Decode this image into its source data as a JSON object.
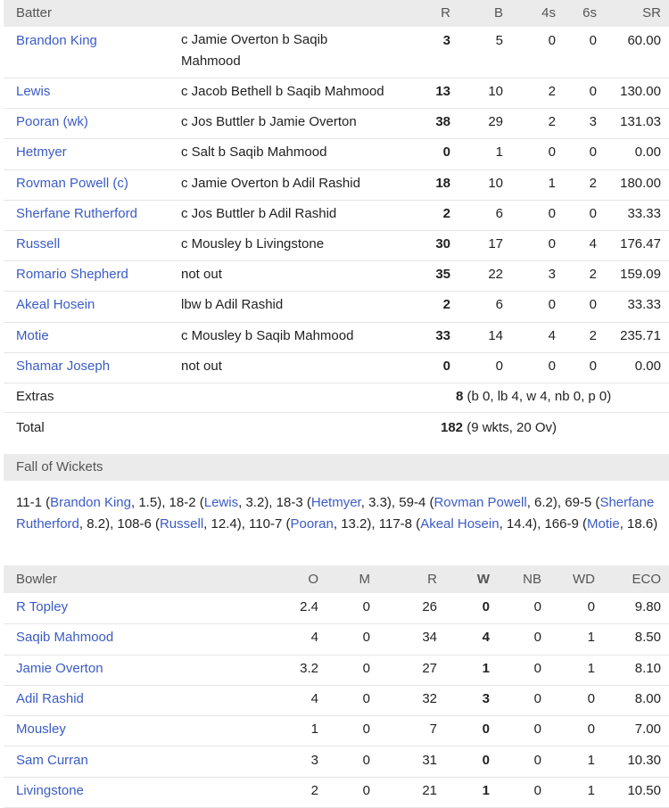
{
  "batting": {
    "headers": {
      "batter": "Batter",
      "r": "R",
      "b": "B",
      "fours": "4s",
      "sixes": "6s",
      "sr": "SR"
    },
    "rows": [
      {
        "name": "Brandon King",
        "dismissal": "c Jamie Overton b Saqib Mahmood",
        "r": "3",
        "b": "5",
        "fours": "0",
        "sixes": "0",
        "sr": "60.00"
      },
      {
        "name": "Lewis",
        "dismissal": "c Jacob Bethell b Saqib Mahmood",
        "r": "13",
        "b": "10",
        "fours": "2",
        "sixes": "0",
        "sr": "130.00"
      },
      {
        "name": "Pooran (wk)",
        "dismissal": "c Jos Buttler b Jamie Overton",
        "r": "38",
        "b": "29",
        "fours": "2",
        "sixes": "3",
        "sr": "131.03"
      },
      {
        "name": "Hetmyer",
        "dismissal": "c Salt b Saqib Mahmood",
        "r": "0",
        "b": "1",
        "fours": "0",
        "sixes": "0",
        "sr": "0.00"
      },
      {
        "name": "Rovman Powell (c)",
        "dismissal": "c Jamie Overton b Adil Rashid",
        "r": "18",
        "b": "10",
        "fours": "1",
        "sixes": "2",
        "sr": "180.00"
      },
      {
        "name": "Sherfane Rutherford",
        "dismissal": "c Jos Buttler b Adil Rashid",
        "r": "2",
        "b": "6",
        "fours": "0",
        "sixes": "0",
        "sr": "33.33"
      },
      {
        "name": "Russell",
        "dismissal": "c Mousley b Livingstone",
        "r": "30",
        "b": "17",
        "fours": "0",
        "sixes": "4",
        "sr": "176.47"
      },
      {
        "name": "Romario Shepherd",
        "dismissal": "not out",
        "r": "35",
        "b": "22",
        "fours": "3",
        "sixes": "2",
        "sr": "159.09"
      },
      {
        "name": "Akeal Hosein",
        "dismissal": "lbw b Adil Rashid",
        "r": "2",
        "b": "6",
        "fours": "0",
        "sixes": "0",
        "sr": "33.33"
      },
      {
        "name": "Motie",
        "dismissal": "c Mousley b Saqib Mahmood",
        "r": "33",
        "b": "14",
        "fours": "4",
        "sixes": "2",
        "sr": "235.71"
      },
      {
        "name": "Shamar Joseph",
        "dismissal": "not out",
        "r": "0",
        "b": "0",
        "fours": "0",
        "sixes": "0",
        "sr": "0.00"
      }
    ],
    "extras": {
      "label": "Extras",
      "value": "8",
      "detail": " (b 0, lb 4, w 4, nb 0, p 0)"
    },
    "total": {
      "label": "Total",
      "value": "182",
      "detail": " (9 wkts, 20 Ov)"
    }
  },
  "fall_of_wickets": {
    "title": "Fall of Wickets",
    "entries": [
      {
        "score": "11-1",
        "name": "Brandon King",
        "over": "1.5"
      },
      {
        "score": "18-2",
        "name": "Lewis",
        "over": "3.2"
      },
      {
        "score": "18-3",
        "name": "Hetmyer",
        "over": "3.3"
      },
      {
        "score": "59-4",
        "name": "Rovman Powell",
        "over": "6.2"
      },
      {
        "score": "69-5",
        "name": "Sherfane Rutherford",
        "over": "8.2"
      },
      {
        "score": "108-6",
        "name": "Russell",
        "over": "12.4"
      },
      {
        "score": "110-7",
        "name": "Pooran",
        "over": "13.2"
      },
      {
        "score": "117-8",
        "name": "Akeal Hosein",
        "over": "14.4"
      },
      {
        "score": "166-9",
        "name": "Motie",
        "over": "18.6"
      }
    ]
  },
  "bowling": {
    "headers": {
      "bowler": "Bowler",
      "o": "O",
      "m": "M",
      "r": "R",
      "w": "W",
      "nb": "NB",
      "wd": "WD",
      "eco": "ECO"
    },
    "rows": [
      {
        "name": "R Topley",
        "o": "2.4",
        "m": "0",
        "r": "26",
        "w": "0",
        "nb": "0",
        "wd": "0",
        "eco": "9.80"
      },
      {
        "name": "Saqib Mahmood",
        "o": "4",
        "m": "0",
        "r": "34",
        "w": "4",
        "nb": "0",
        "wd": "1",
        "eco": "8.50"
      },
      {
        "name": "Jamie Overton",
        "o": "3.2",
        "m": "0",
        "r": "27",
        "w": "1",
        "nb": "0",
        "wd": "1",
        "eco": "8.10"
      },
      {
        "name": "Adil Rashid",
        "o": "4",
        "m": "0",
        "r": "32",
        "w": "3",
        "nb": "0",
        "wd": "0",
        "eco": "8.00"
      },
      {
        "name": "Mousley",
        "o": "1",
        "m": "0",
        "r": "7",
        "w": "0",
        "nb": "0",
        "wd": "0",
        "eco": "7.00"
      },
      {
        "name": "Sam Curran",
        "o": "3",
        "m": "0",
        "r": "31",
        "w": "0",
        "nb": "0",
        "wd": "1",
        "eco": "10.30"
      },
      {
        "name": "Livingstone",
        "o": "2",
        "m": "0",
        "r": "21",
        "w": "1",
        "nb": "0",
        "wd": "1",
        "eco": "10.50"
      }
    ]
  },
  "colors": {
    "link": "#3b5cc4",
    "header_bg": "#ebebeb"
  }
}
